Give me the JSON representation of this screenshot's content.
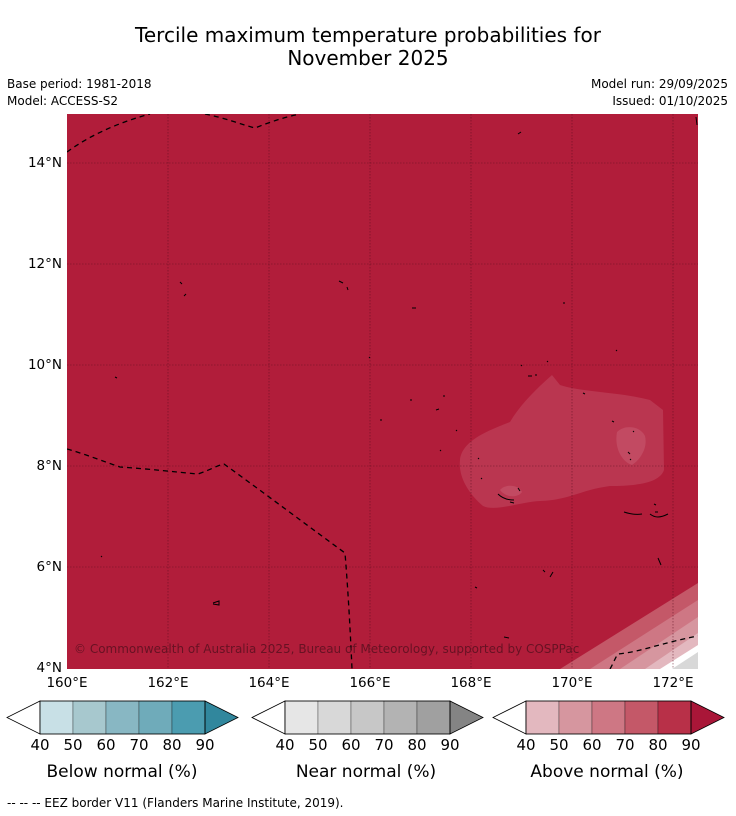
{
  "title": {
    "line1": "Tercile maximum temperature probabilities for",
    "line2": "November 2025"
  },
  "meta": {
    "base_period": "Base period: 1981-2018",
    "model": "Model: ACCESS-S2",
    "model_run": "Model run: 29/09/2025",
    "issued": "Issued: 01/10/2025"
  },
  "map": {
    "background_color": "#b11d3a",
    "blob_color": "#ba3650",
    "inner_blob_color": "#c24a62",
    "copyright": "© Commonwealth of Australia 2025, Bureau of Meteorology, supported by COSPPac",
    "y_labels": [
      "14°N",
      "12°N",
      "10°N",
      "8°N",
      "6°N",
      "4°N"
    ],
    "x_labels": [
      "160°E",
      "162°E",
      "164°E",
      "166°E",
      "168°E",
      "170°E",
      "172°E"
    ]
  },
  "colorbars": [
    {
      "title": "Below normal (%)",
      "ticks": [
        "40",
        "50",
        "60",
        "70",
        "80",
        "90"
      ],
      "colors": [
        "#c8e0e6",
        "#a7c8ce",
        "#88b7c3",
        "#6fabba",
        "#4b9cb0",
        "#31879d"
      ]
    },
    {
      "title": "Near normal (%)",
      "ticks": [
        "40",
        "50",
        "60",
        "70",
        "80",
        "90"
      ],
      "colors": [
        "#e6e6e6",
        "#d8d8d8",
        "#c7c7c7",
        "#b3b3b3",
        "#a0a0a0",
        "#848484"
      ]
    },
    {
      "title": "Above normal (%)",
      "ticks": [
        "40",
        "50",
        "60",
        "70",
        "80",
        "90"
      ],
      "colors": [
        "#e3b8bf",
        "#d6969f",
        "#ce7784",
        "#c45868",
        "#b83048",
        "#a91638"
      ]
    }
  ],
  "footer": "--  --  -- EEZ border V11 (Flanders Marine Institute, 2019)."
}
